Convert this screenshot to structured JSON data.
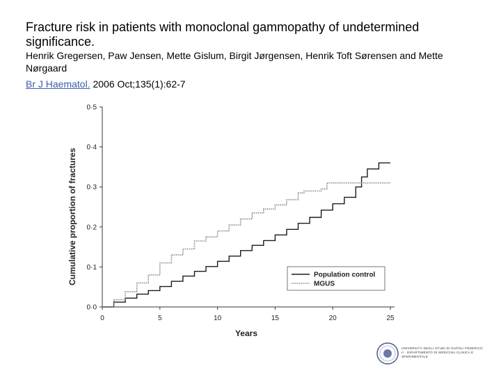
{
  "header": {
    "title": "Fracture risk in patients with monoclonal gammopathy of undetermined significance.",
    "authors": "Henrik Gregersen, Paw Jensen, Mette Gislum, Birgit Jørgensen, Henrik Toft Sørensen and Mette Nørgaard",
    "citation_journal": "Br J Haematol.",
    "citation_details": " 2006 Oct;135(1):62-7"
  },
  "colors": {
    "population_line": "#1a1a1a",
    "mgus_line": "#8a8a8a",
    "link": "#3b5da8"
  },
  "chart_data": {
    "type": "line",
    "title": "",
    "xlabel": "Years",
    "ylabel": "Cumulative proportion of fractures",
    "xlim": [
      0,
      25
    ],
    "ylim": [
      0,
      0.5
    ],
    "xticks": [
      0,
      5,
      10,
      15,
      20,
      25
    ],
    "xtick_labels": [
      "0",
      "5",
      "10",
      "15",
      "20",
      "25"
    ],
    "yticks": [
      0,
      0.1,
      0.2,
      0.3,
      0.4,
      0.5
    ],
    "ytick_labels": [
      "0·0",
      "0·1",
      "0·2",
      "0·3",
      "0·4",
      "0·5"
    ],
    "legend_position": "lower-right",
    "series": [
      {
        "name": "Population control",
        "style": "solid",
        "x": [
          0,
          1,
          2,
          3,
          4,
          5,
          6,
          7,
          8,
          9,
          10,
          11,
          12,
          13,
          14,
          15,
          16,
          17,
          18,
          19,
          20,
          21,
          22,
          22.5,
          23,
          23.5,
          24,
          24.5,
          25
        ],
        "y": [
          0,
          0.012,
          0.022,
          0.032,
          0.041,
          0.051,
          0.064,
          0.077,
          0.089,
          0.101,
          0.114,
          0.127,
          0.141,
          0.154,
          0.166,
          0.18,
          0.194,
          0.209,
          0.224,
          0.242,
          0.258,
          0.274,
          0.3,
          0.325,
          0.345,
          0.345,
          0.36,
          0.36,
          0.36
        ]
      },
      {
        "name": "MGUS",
        "style": "dotted",
        "x": [
          0,
          1,
          2,
          3,
          4,
          5,
          6,
          7,
          8,
          9,
          10,
          11,
          12,
          13,
          14,
          15,
          16,
          17,
          17.5,
          18,
          19,
          19.5,
          20,
          21,
          22,
          23,
          24,
          25
        ],
        "y": [
          0,
          0.018,
          0.038,
          0.06,
          0.08,
          0.11,
          0.13,
          0.145,
          0.165,
          0.175,
          0.19,
          0.205,
          0.22,
          0.235,
          0.245,
          0.255,
          0.268,
          0.285,
          0.29,
          0.29,
          0.295,
          0.31,
          0.31,
          0.31,
          0.31,
          0.31,
          0.31,
          0.31
        ]
      }
    ]
  },
  "footer": {
    "logo_text": "UNIVERSITÀ DEGLI STUDI DI NAPOLI FEDERICO II · DIPARTIMENTO DI MEDICINA CLINICA E SPERIMENTALE"
  }
}
